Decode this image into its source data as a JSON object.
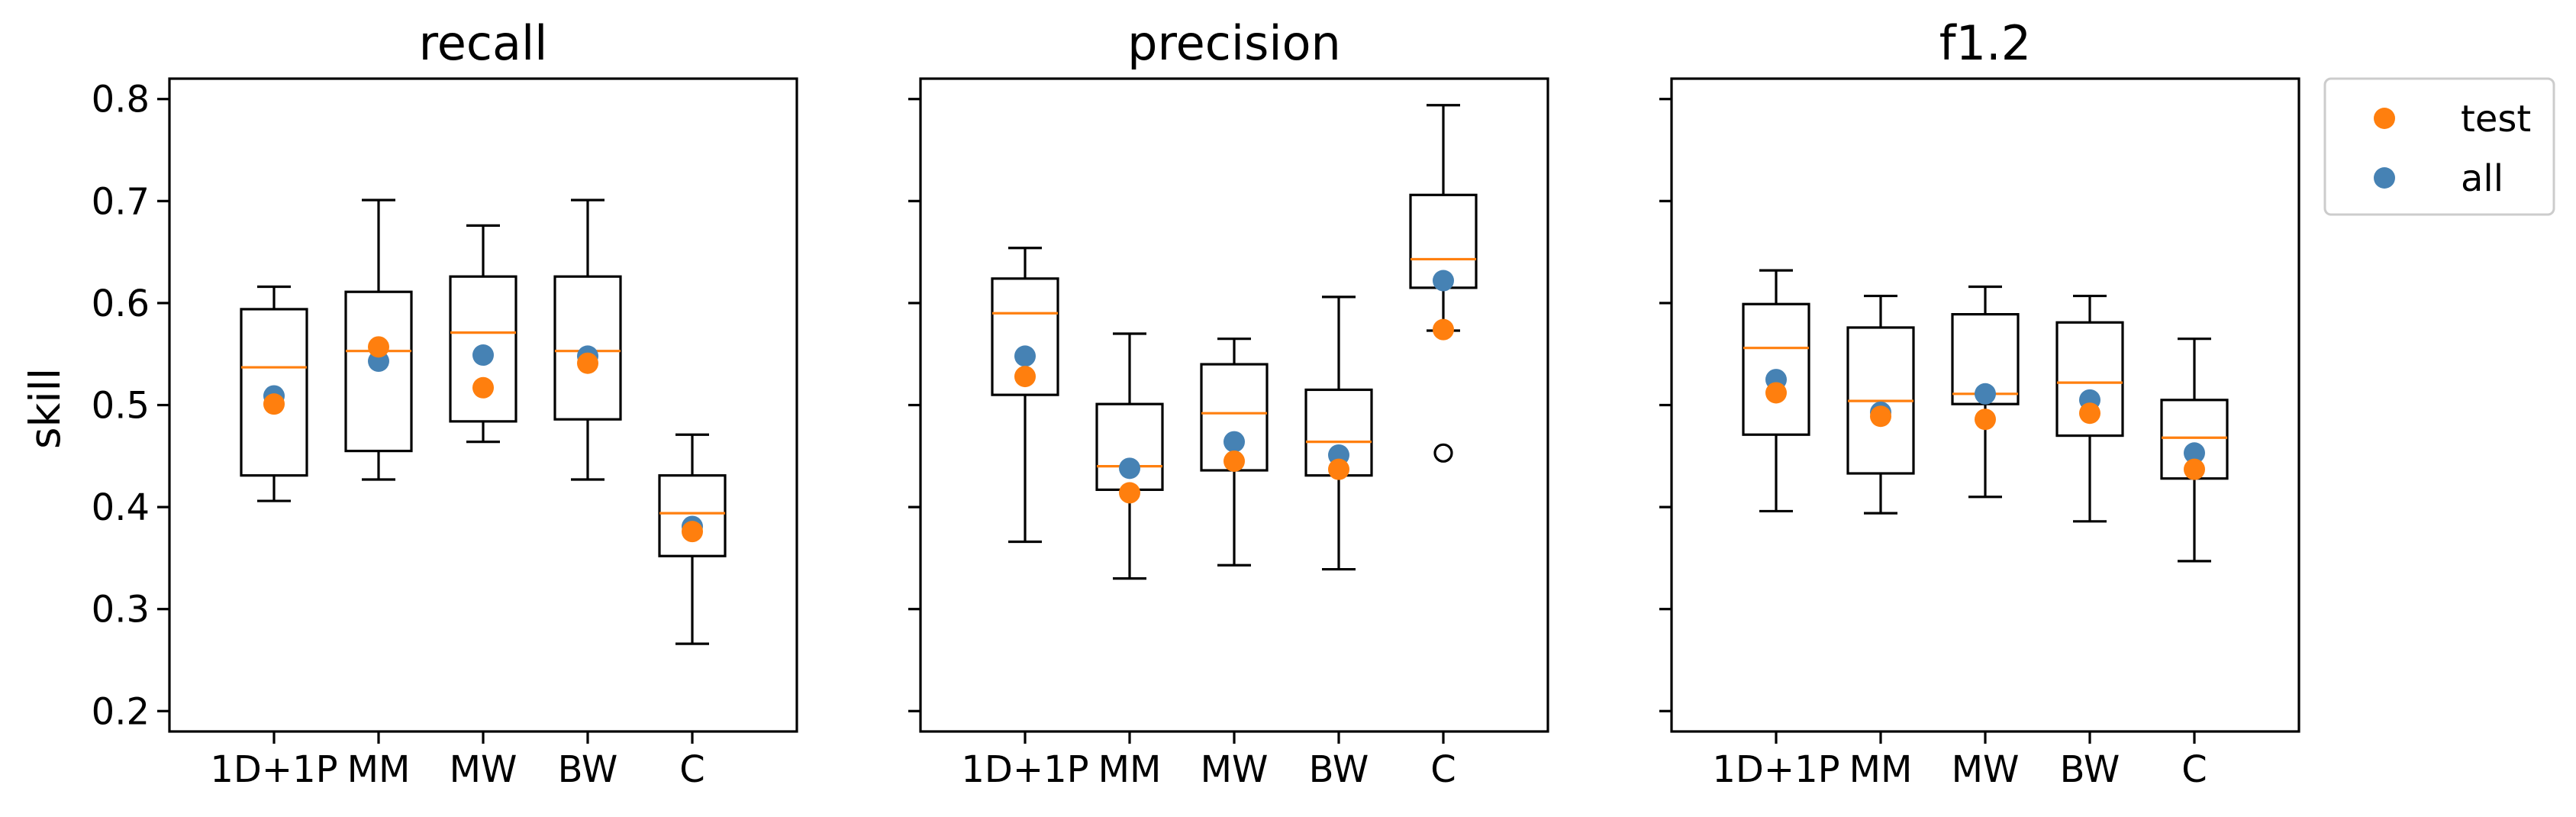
{
  "chart_data": {
    "type": "box",
    "ylabel": "skill",
    "ylim": [
      0.18,
      0.82
    ],
    "yticks": [
      "0.2",
      "0.3",
      "0.4",
      "0.5",
      "0.6",
      "0.7",
      "0.8"
    ],
    "categories": [
      "1D+1P",
      "MM",
      "MW",
      "BW",
      "C"
    ],
    "legend": {
      "position": "outside-right",
      "entries": [
        {
          "name": "test",
          "color": "#ff7f0e"
        },
        {
          "name": "all",
          "color": "#4682b4"
        }
      ]
    },
    "colors": {
      "median": "#ff7f0e",
      "test": "#ff7f0e",
      "all": "#4682b4",
      "box": "#000000"
    },
    "panels": [
      {
        "title": "recall",
        "boxes": [
          {
            "category": "1D+1P",
            "whisker_low": 0.406,
            "q1": 0.431,
            "median": 0.537,
            "q3": 0.594,
            "whisker_high": 0.616,
            "outliers": [],
            "test": 0.501,
            "all": 0.509
          },
          {
            "category": "MM",
            "whisker_low": 0.427,
            "q1": 0.455,
            "median": 0.553,
            "q3": 0.611,
            "whisker_high": 0.701,
            "outliers": [],
            "test": 0.557,
            "all": 0.543
          },
          {
            "category": "MW",
            "whisker_low": 0.464,
            "q1": 0.484,
            "median": 0.571,
            "q3": 0.626,
            "whisker_high": 0.676,
            "outliers": [],
            "test": 0.517,
            "all": 0.549
          },
          {
            "category": "BW",
            "whisker_low": 0.427,
            "q1": 0.486,
            "median": 0.553,
            "q3": 0.626,
            "whisker_high": 0.701,
            "outliers": [],
            "test": 0.541,
            "all": 0.548
          },
          {
            "category": "C",
            "whisker_low": 0.266,
            "q1": 0.352,
            "median": 0.394,
            "q3": 0.431,
            "whisker_high": 0.471,
            "outliers": [],
            "test": 0.376,
            "all": 0.381
          }
        ]
      },
      {
        "title": "precision",
        "boxes": [
          {
            "category": "1D+1P",
            "whisker_low": 0.366,
            "q1": 0.51,
            "median": 0.59,
            "q3": 0.624,
            "whisker_high": 0.654,
            "outliers": [],
            "test": 0.528,
            "all": 0.548
          },
          {
            "category": "MM",
            "whisker_low": 0.33,
            "q1": 0.417,
            "median": 0.44,
            "q3": 0.501,
            "whisker_high": 0.57,
            "outliers": [],
            "test": 0.414,
            "all": 0.438
          },
          {
            "category": "MW",
            "whisker_low": 0.343,
            "q1": 0.436,
            "median": 0.492,
            "q3": 0.54,
            "whisker_high": 0.565,
            "outliers": [],
            "test": 0.445,
            "all": 0.464
          },
          {
            "category": "BW",
            "whisker_low": 0.339,
            "q1": 0.431,
            "median": 0.464,
            "q3": 0.515,
            "whisker_high": 0.606,
            "outliers": [],
            "test": 0.437,
            "all": 0.451
          },
          {
            "category": "C",
            "whisker_low": 0.573,
            "q1": 0.615,
            "median": 0.643,
            "q3": 0.706,
            "whisker_high": 0.794,
            "outliers": [
              0.453
            ],
            "test": 0.574,
            "all": 0.622
          }
        ]
      },
      {
        "title": "f1.2",
        "boxes": [
          {
            "category": "1D+1P",
            "whisker_low": 0.396,
            "q1": 0.471,
            "median": 0.556,
            "q3": 0.599,
            "whisker_high": 0.632,
            "outliers": [],
            "test": 0.512,
            "all": 0.525
          },
          {
            "category": "MM",
            "whisker_low": 0.394,
            "q1": 0.433,
            "median": 0.504,
            "q3": 0.576,
            "whisker_high": 0.607,
            "outliers": [],
            "test": 0.489,
            "all": 0.493
          },
          {
            "category": "MW",
            "whisker_low": 0.41,
            "q1": 0.501,
            "median": 0.511,
            "q3": 0.589,
            "whisker_high": 0.616,
            "outliers": [],
            "test": 0.486,
            "all": 0.511
          },
          {
            "category": "BW",
            "whisker_low": 0.386,
            "q1": 0.47,
            "median": 0.522,
            "q3": 0.581,
            "whisker_high": 0.607,
            "outliers": [],
            "test": 0.492,
            "all": 0.505
          },
          {
            "category": "C",
            "whisker_low": 0.347,
            "q1": 0.428,
            "median": 0.468,
            "q3": 0.505,
            "whisker_high": 0.565,
            "outliers": [],
            "test": 0.437,
            "all": 0.453
          }
        ]
      }
    ]
  }
}
